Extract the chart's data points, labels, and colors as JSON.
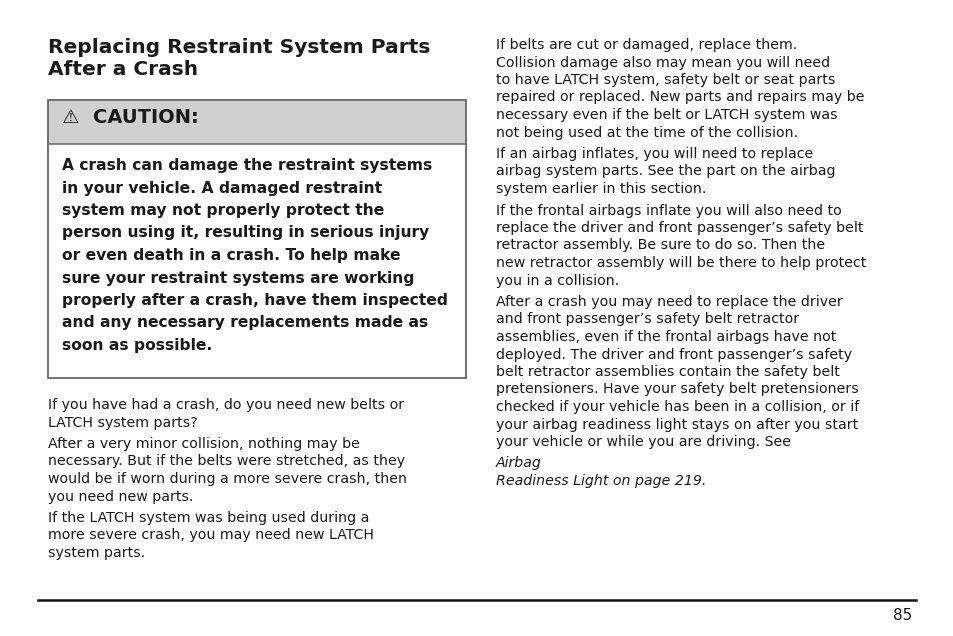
{
  "bg_color": "#ffffff",
  "text_color": "#1a1a1a",
  "title_line1": "Replacing Restraint System Parts",
  "title_line2": "After a Crash",
  "caution_header": "⚠  CAUTION:",
  "caution_body_lines": [
    "A crash can damage the restraint systems",
    "in your vehicle. A damaged restraint",
    "system may not properly protect the",
    "person using it, resulting in serious injury",
    "or even death in a crash. To help make",
    "sure your restraint systems are working",
    "properly after a crash, have them inspected",
    "and any necessary replacements made as",
    "soon as possible."
  ],
  "left_paragraphs": [
    "If you have had a crash, do you need new belts or\nLATCH system parts?",
    "After a very minor collision, nothing may be\nnecessary. But if the belts were stretched, as they\nwould be if worn during a more severe crash, then\nyou need new parts.",
    "If the LATCH system was being used during a\nmore severe crash, you may need new LATCH\nsystem parts."
  ],
  "right_paragraphs": [
    "If belts are cut or damaged, replace them.\nCollision damage also may mean you will need\nto have LATCH system, safety belt or seat parts\nrepaired or replaced. New parts and repairs may be\nnecessary even if the belt or LATCH system was\nnot being used at the time of the collision.",
    "If an airbag inflates, you will need to replace\nairbag system parts. See the part on the airbag\nsystem earlier in this section.",
    "If the frontal airbags inflate you will also need to\nreplace the driver and front passenger’s safety belt\nretractor assembly. Be sure to do so. Then the\nnew retractor assembly will be there to help protect\nyou in a collision.",
    "After a crash you may need to replace the driver\nand front passenger’s safety belt retractor\nassemblies, even if the frontal airbags have not\ndeployed. The driver and front passenger’s safety\nbelt retractor assemblies contain the safety belt\npretensioners. Have your safety belt pretensioners\nchecked if your vehicle has been in a collision, or if\nyour airbag readiness light stays on after you start\nyour vehicle or while you are driving. See ",
    "Airbag\nReadiness Light on page 219."
  ],
  "page_number": "85",
  "caution_bg": "#d0d0d0",
  "box_border_color": "#666666"
}
